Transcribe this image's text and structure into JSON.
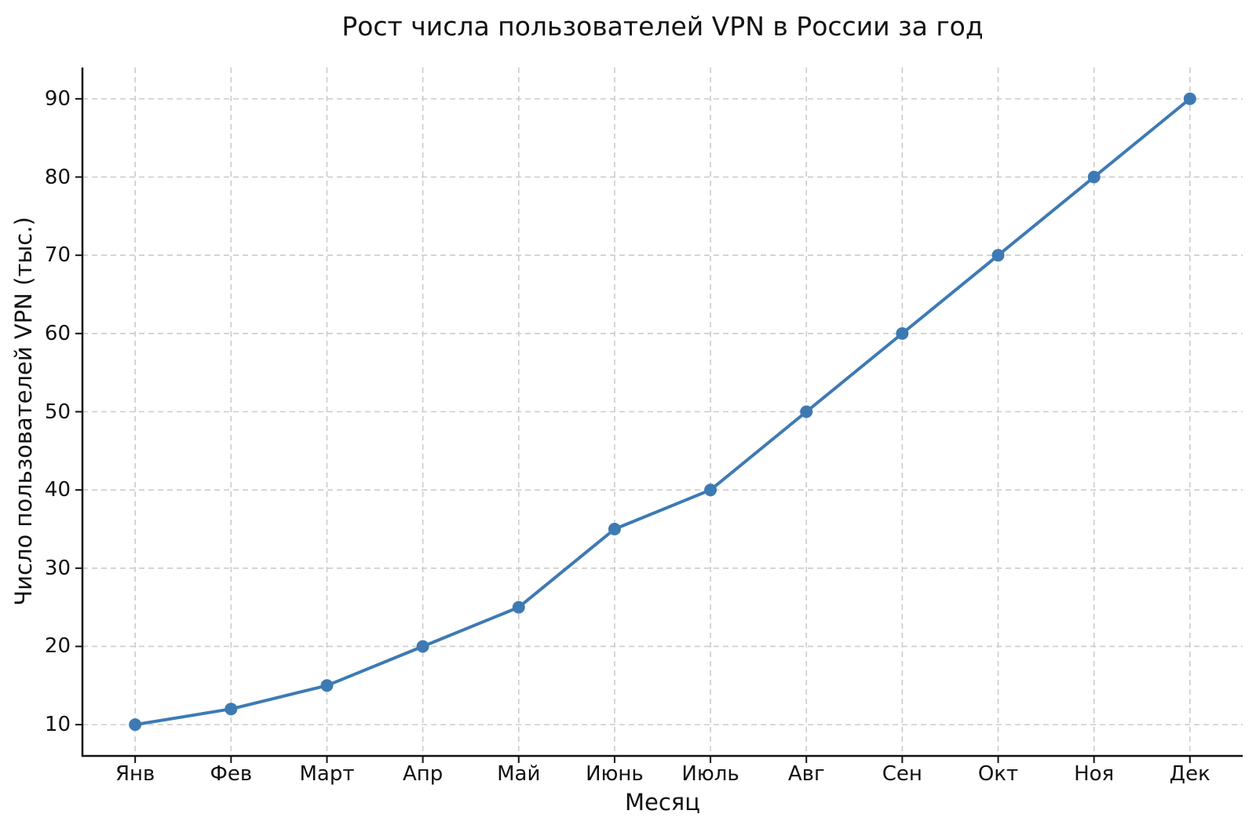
{
  "chart_data": {
    "type": "line",
    "title": "Рост числа пользователей VPN в России за год",
    "xlabel": "Месяц",
    "ylabel": "Число пользователей VPN (тыс.)",
    "categories": [
      "Янв",
      "Фев",
      "Март",
      "Апр",
      "Май",
      "Июнь",
      "Июль",
      "Авг",
      "Сен",
      "Окт",
      "Ноя",
      "Дек"
    ],
    "values": [
      10,
      12,
      15,
      20,
      25,
      35,
      40,
      50,
      60,
      70,
      80,
      90
    ],
    "yticks": [
      10,
      20,
      30,
      40,
      50,
      60,
      70,
      80,
      90
    ],
    "ylim": [
      6,
      94
    ],
    "grid": "both-dashed",
    "legend": "none",
    "marker": "circle",
    "line_color": "#3d7ab4",
    "grid_color": "#cccccc",
    "axis_color": "#111111"
  }
}
